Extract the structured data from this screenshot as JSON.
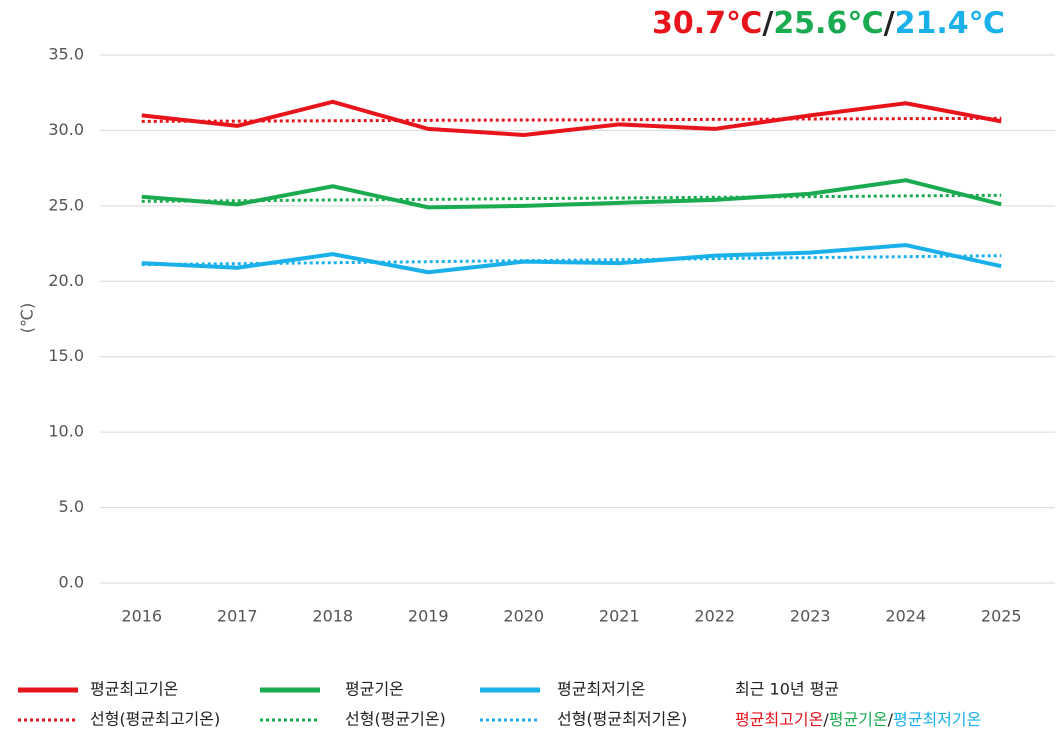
{
  "chart_data": {
    "type": "line",
    "y_label": "(℃)",
    "categories": [
      "2016",
      "2017",
      "2018",
      "2019",
      "2020",
      "2021",
      "2022",
      "2023",
      "2024",
      "2025"
    ],
    "series": [
      {
        "name": "평균최고기온",
        "color": "#e8141c",
        "dotted": false,
        "values": [
          31.0,
          30.3,
          31.9,
          30.1,
          29.7,
          30.4,
          30.1,
          31.0,
          31.8,
          30.6
        ]
      },
      {
        "name": "선형(평균최고기온)",
        "color": "#e8141c",
        "dotted": true,
        "values": [
          30.6,
          30.62,
          30.64,
          30.67,
          30.69,
          30.71,
          30.73,
          30.76,
          30.78,
          30.8
        ]
      },
      {
        "name": "평균기온",
        "color": "#1aaa4f",
        "dotted": false,
        "values": [
          25.6,
          25.1,
          26.3,
          24.9,
          25.0,
          25.2,
          25.4,
          25.8,
          26.7,
          25.1
        ]
      },
      {
        "name": "선형(평균기온)",
        "color": "#1aaa4f",
        "dotted": true,
        "values": [
          25.3,
          25.34,
          25.39,
          25.43,
          25.48,
          25.52,
          25.57,
          25.61,
          25.66,
          25.7
        ]
      },
      {
        "name": "평균최저기온",
        "color": "#1ab0ea",
        "dotted": false,
        "values": [
          21.2,
          20.9,
          21.8,
          20.6,
          21.3,
          21.2,
          21.7,
          21.9,
          22.4,
          21.0
        ]
      },
      {
        "name": "선형(평균최저기온)",
        "color": "#1ab0ea",
        "dotted": true,
        "values": [
          21.1,
          21.17,
          21.23,
          21.3,
          21.37,
          21.43,
          21.5,
          21.57,
          21.63,
          21.7
        ]
      }
    ],
    "ylim": [
      0,
      35
    ],
    "yticks": [
      {
        "value": 0,
        "label": "0.0"
      },
      {
        "value": 5,
        "label": "5.0"
      },
      {
        "value": 10,
        "label": "10.0"
      },
      {
        "value": 15,
        "label": "15.0"
      },
      {
        "value": 20,
        "label": "20.0"
      },
      {
        "value": 25,
        "label": "25.0"
      },
      {
        "value": 30,
        "label": "30.0"
      },
      {
        "value": 35,
        "label": "35.0"
      }
    ],
    "grid": true,
    "annotation": [
      {
        "text": "30.7℃",
        "color": "#e8141c"
      },
      {
        "text": "/",
        "color": "#222222"
      },
      {
        "text": "25.6℃",
        "color": "#1aaa4f"
      },
      {
        "text": "/",
        "color": "#222222"
      },
      {
        "text": "21.4℃",
        "color": "#1ab0ea"
      }
    ],
    "average_legend": {
      "title": "최근 10년 평균",
      "parts": [
        {
          "text": "평균최고기온",
          "color": "#e8141c"
        },
        {
          "text": "/",
          "color": "#222222"
        },
        {
          "text": "평균기온",
          "color": "#1aaa4f"
        },
        {
          "text": "/",
          "color": "#222222"
        },
        {
          "text": "평균최저기온",
          "color": "#1ab0ea"
        }
      ]
    }
  }
}
